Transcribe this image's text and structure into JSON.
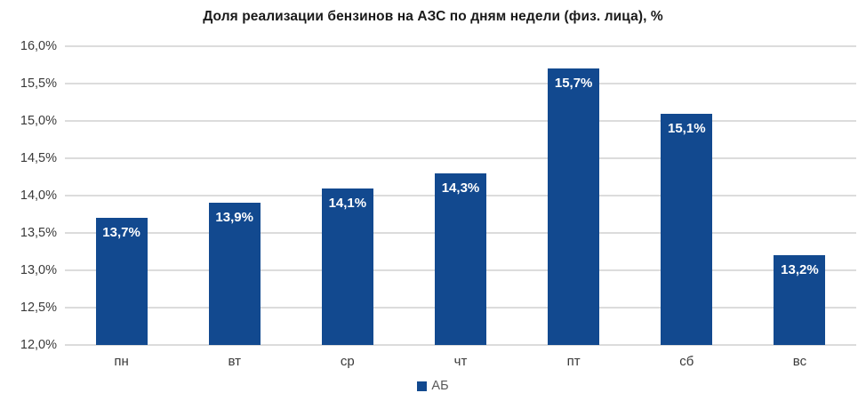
{
  "chart_data": {
    "type": "bar",
    "title": "Доля реализации бензинов на АЗС по дням недели (физ. лица), %",
    "categories": [
      "пн",
      "вт",
      "ср",
      "чт",
      "пт",
      "сб",
      "вс"
    ],
    "values": [
      13.7,
      13.9,
      14.1,
      14.3,
      15.7,
      15.1,
      13.2
    ],
    "value_labels": [
      "13,7%",
      "13,9%",
      "14,1%",
      "14,3%",
      "15,7%",
      "15,1%",
      "13,2%"
    ],
    "ylim": [
      12.0,
      16.0
    ],
    "ytick_step": 0.5,
    "ytick_labels": [
      "12,0%",
      "12,5%",
      "13,0%",
      "13,5%",
      "14,0%",
      "14,5%",
      "15,0%",
      "15,5%",
      "16,0%"
    ],
    "grid": true,
    "legend_position": "bottom",
    "series_name": "АБ",
    "xlabel": "",
    "ylabel": ""
  },
  "colors": {
    "bar": "#12498F",
    "bar_value_label": "#FFFFFF",
    "gridline": "#DCDCDC",
    "axis_text": "#3A3A3A",
    "title_text": "#1A1A1A",
    "legend_text": "#595959"
  }
}
